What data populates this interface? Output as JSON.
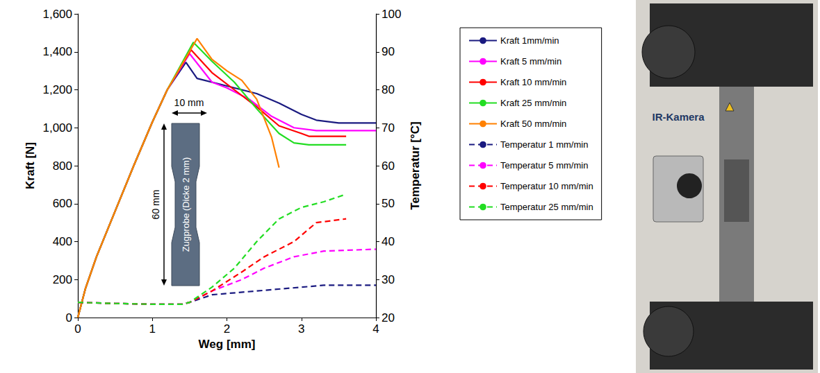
{
  "chart_data": {
    "type": "line",
    "x_label": "Weg [mm]",
    "y_label": "Kraft [N]",
    "y2_label": "Temperatur [°C]",
    "xlim": [
      0,
      4
    ],
    "xticks": [
      0,
      1,
      2,
      3,
      4
    ],
    "ylim": [
      0,
      1600
    ],
    "yticks": [
      0,
      200,
      400,
      600,
      800,
      1000,
      1200,
      1400,
      1600
    ],
    "y2lim": [
      20,
      100
    ],
    "y2ticks": [
      20,
      30,
      40,
      50,
      60,
      70,
      80,
      90,
      100
    ],
    "grid": false,
    "legend": "right",
    "annotations": {
      "specimen": "Zugprobe (Dicke 2 mm)",
      "width": "10 mm",
      "length": "60 mm",
      "camera": "IR-Kamera"
    },
    "series": [
      {
        "name": "Kraft 1mm/min",
        "color": "#1a1a80",
        "axis": "y",
        "line_style": "solid",
        "x": [
          0,
          0.1,
          0.25,
          0.5,
          0.75,
          1.0,
          1.2,
          1.45,
          1.6,
          2.0,
          2.4,
          2.7,
          3.0,
          3.2,
          3.5,
          4.0
        ],
        "values": [
          0,
          150,
          320,
          560,
          800,
          1030,
          1200,
          1345,
          1260,
          1220,
          1180,
          1130,
          1070,
          1040,
          1025,
          1025
        ]
      },
      {
        "name": "Kraft 5 mm/min",
        "color": "#ff00ff",
        "axis": "y",
        "line_style": "solid",
        "x": [
          0,
          0.1,
          0.25,
          0.5,
          0.75,
          1.0,
          1.2,
          1.5,
          1.8,
          2.0,
          2.3,
          2.6,
          2.9,
          3.2,
          4.0
        ],
        "values": [
          0,
          150,
          320,
          560,
          800,
          1030,
          1200,
          1390,
          1240,
          1210,
          1150,
          1060,
          1000,
          985,
          985
        ]
      },
      {
        "name": "Kraft 10 mm/min",
        "color": "#ff0000",
        "axis": "y",
        "line_style": "solid",
        "x": [
          0,
          0.1,
          0.25,
          0.5,
          0.75,
          1.0,
          1.2,
          1.52,
          1.8,
          2.1,
          2.4,
          2.7,
          3.0,
          3.1,
          3.6
        ],
        "values": [
          0,
          150,
          320,
          560,
          800,
          1030,
          1200,
          1410,
          1290,
          1200,
          1110,
          1010,
          970,
          955,
          955
        ]
      },
      {
        "name": "Kraft 25 mm/min",
        "color": "#22dd22",
        "axis": "y",
        "line_style": "solid",
        "x": [
          0,
          0.1,
          0.25,
          0.5,
          0.75,
          1.0,
          1.2,
          1.55,
          1.8,
          2.1,
          2.4,
          2.7,
          2.9,
          3.1,
          3.6
        ],
        "values": [
          0,
          150,
          320,
          560,
          800,
          1030,
          1200,
          1450,
          1350,
          1240,
          1100,
          970,
          920,
          910,
          910
        ]
      },
      {
        "name": "Kraft 50 mm/min",
        "color": "#ff8000",
        "axis": "y",
        "line_style": "solid",
        "x": [
          0,
          0.1,
          0.25,
          0.5,
          0.75,
          1.0,
          1.2,
          1.6,
          1.8,
          2.0,
          2.2,
          2.4,
          2.6,
          2.7
        ],
        "values": [
          0,
          150,
          320,
          560,
          800,
          1030,
          1200,
          1470,
          1360,
          1300,
          1250,
          1150,
          950,
          790
        ]
      },
      {
        "name": "Temperatur 1 mm/min",
        "color": "#1a1a80",
        "axis": "y2",
        "line_style": "dashed",
        "x": [
          0,
          0.5,
          1.0,
          1.4,
          1.5,
          1.8,
          2.4,
          3.0,
          3.3,
          4.0
        ],
        "values": [
          24,
          23.7,
          23.5,
          23.5,
          24,
          26,
          27,
          28,
          28.5,
          28.5
        ]
      },
      {
        "name": "Temperatur 5 mm/min",
        "color": "#ff00ff",
        "axis": "y2",
        "line_style": "dashed",
        "x": [
          0,
          0.5,
          1.0,
          1.4,
          1.5,
          1.8,
          2.2,
          2.5,
          2.9,
          3.3,
          4.0
        ],
        "values": [
          24,
          23.7,
          23.5,
          23.5,
          24,
          27,
          30,
          33,
          36,
          37.5,
          38
        ]
      },
      {
        "name": "Temperatur 10 mm/min",
        "color": "#ff0000",
        "axis": "y2",
        "line_style": "dashed",
        "x": [
          0,
          0.5,
          1.0,
          1.4,
          1.5,
          1.8,
          2.2,
          2.5,
          2.9,
          3.2,
          3.6
        ],
        "values": [
          24,
          23.7,
          23.5,
          23.5,
          24,
          27,
          32,
          36,
          40,
          45,
          46
        ]
      },
      {
        "name": "Temperatur 25 mm/min",
        "color": "#22dd22",
        "axis": "y2",
        "line_style": "dashed",
        "x": [
          0,
          0.5,
          1.0,
          1.4,
          1.5,
          1.8,
          2.1,
          2.4,
          2.7,
          3.0,
          3.3,
          3.6
        ],
        "values": [
          24,
          23.7,
          23.5,
          23.5,
          24,
          28,
          33,
          40,
          46,
          49,
          50.5,
          52.5
        ]
      }
    ]
  }
}
